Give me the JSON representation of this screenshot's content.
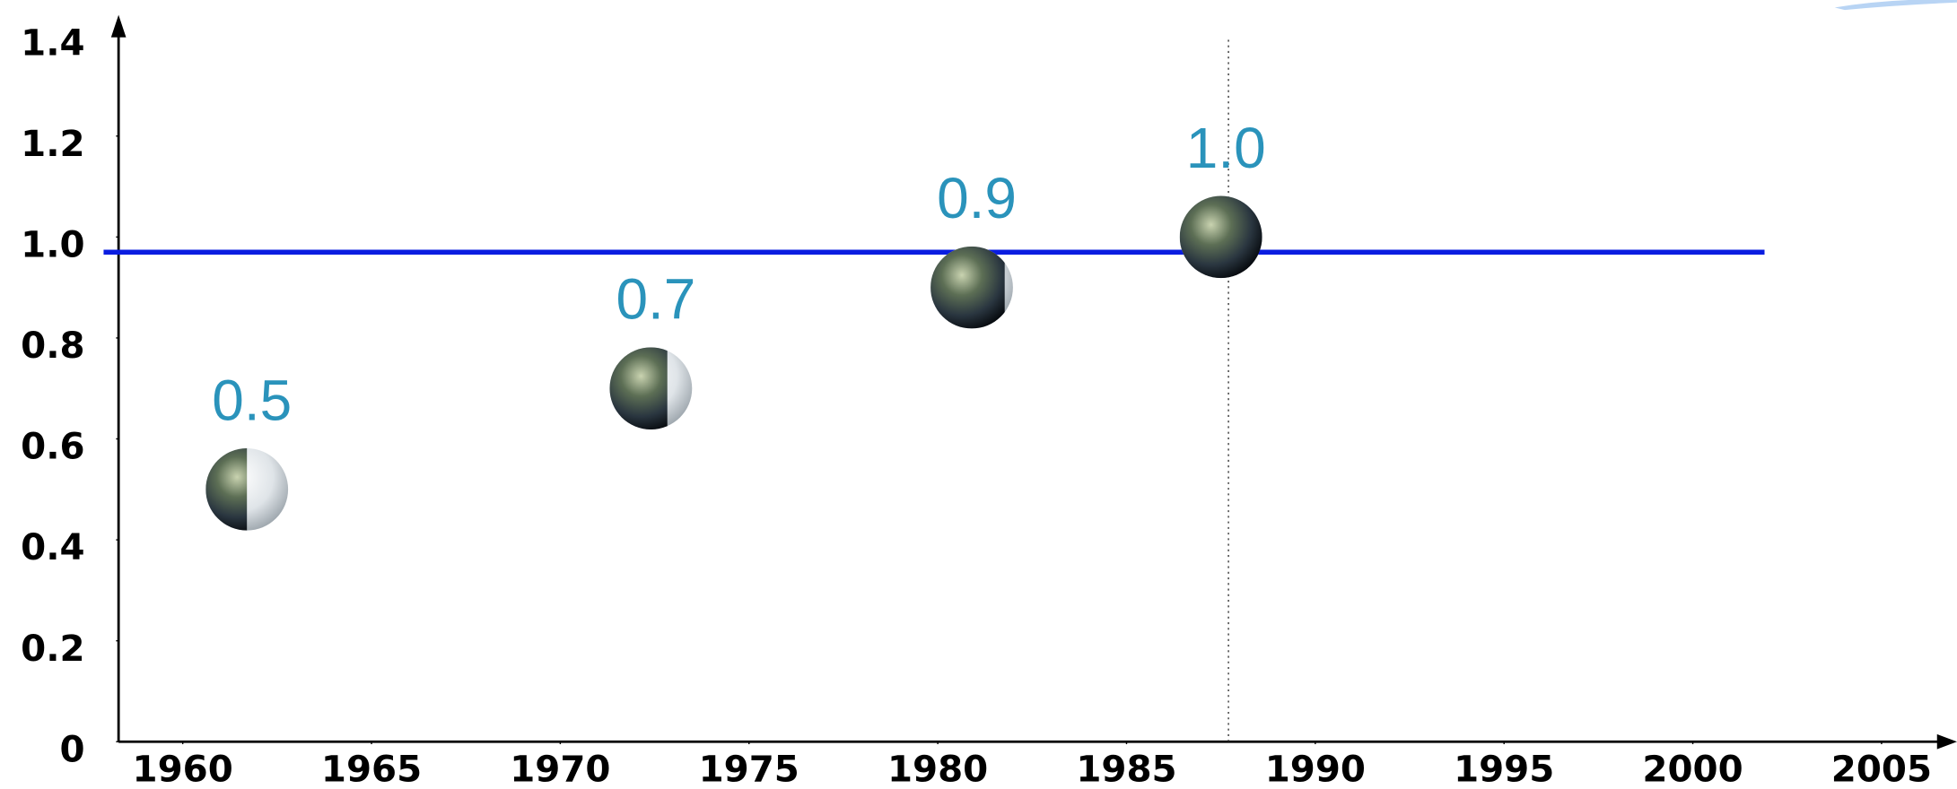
{
  "chart_data": {
    "type": "scatter",
    "series": [
      {
        "x": [
          1961.7,
          1972.4,
          1980.9,
          1987.5
        ],
        "values": [
          0.5,
          0.7,
          0.9,
          1.0
        ],
        "value_labels": [
          "0.5",
          "0.7",
          "0.9",
          "1.0"
        ],
        "color": "#2a93bb"
      }
    ],
    "xlim": [
      1958.3,
      2006.8
    ],
    "xticks": [
      1960,
      1965,
      1970,
      1975,
      1980,
      1985,
      1990,
      1995,
      2000,
      2005
    ],
    "ylim": [
      0,
      1.44
    ],
    "yticks": [
      0,
      0.2,
      0.4,
      0.6,
      0.8,
      {
        "value": 1.0,
        "label": "1.0"
      },
      1.2,
      1.4
    ],
    "reference_line": {
      "y": 0.97,
      "x_end": 2001.9,
      "color": "#0a1de0"
    },
    "vertical_line": {
      "x": 1987.7
    }
  }
}
